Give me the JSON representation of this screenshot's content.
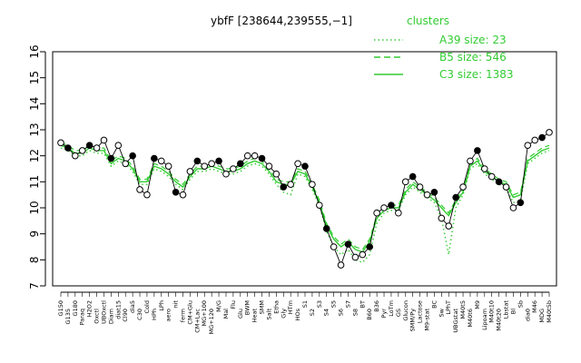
{
  "chart_data": {
    "type": "line",
    "title": "ybfF [238644,239555,−1]",
    "xlabel": "",
    "ylabel": "",
    "ylim": [
      7,
      16
    ],
    "yticks": [
      7,
      8,
      9,
      10,
      11,
      12,
      13,
      14,
      15,
      16
    ],
    "grid": false,
    "legend": {
      "title": "clusters",
      "position": "top-right",
      "entries": [
        {
          "label": "A39 size: 23",
          "style": "dotted"
        },
        {
          "label": "B5 size: 546",
          "style": "dashed"
        },
        {
          "label": "C3 size: 1383",
          "style": "solid"
        }
      ]
    },
    "colors": {
      "points": "#000000",
      "point_fill": "#ffffff",
      "series": "#33cc33",
      "text": "#000000"
    },
    "x_tick_labels": [
      "G150",
      "G135",
      "G180",
      "Paraq",
      "H2O2",
      "Oxctl",
      "UBOxctl",
      "Diam",
      "diat15",
      "Cl90",
      "dia5",
      "C30",
      "Cold",
      "HPh",
      "LPh",
      "aero",
      "nit",
      "ferm",
      "CM+Glu",
      "CM+Lac",
      "MG+100",
      "MG+120",
      "M/G",
      "Mal",
      "Flu",
      "Glu",
      "BWM",
      "Heat",
      "SMM",
      "Salt",
      "Etha",
      "Gly",
      "HTm",
      "HOs",
      "S1",
      "S2",
      "S3",
      "S4",
      "S5",
      "S6",
      "S7",
      "S8",
      "BT",
      "B60",
      "B36",
      "Pyr",
      "LoTm",
      "GS",
      "Glucon",
      "SMM/Py",
      "Lactose",
      "M9-stat",
      "BC",
      "Sw",
      "LPhT",
      "UBGstat",
      "M40t5",
      "M40t6",
      "M9",
      "Lipoam",
      "M40t10",
      "M40t20",
      "Lbstat",
      "Bl",
      "Sb",
      "dia0",
      "M46",
      "MDG",
      "M40t5b"
    ],
    "series": [
      {
        "name": "",
        "role": "points",
        "values": [
          12.5,
          12.3,
          12.0,
          12.2,
          12.4,
          12.3,
          12.6,
          11.9,
          12.4,
          11.7,
          12.0,
          10.7,
          10.5,
          11.9,
          11.8,
          11.6,
          10.6,
          10.5,
          11.4,
          11.8,
          11.6,
          11.7,
          11.8,
          11.3,
          11.5,
          11.7,
          12.0,
          12.0,
          11.9,
          11.6,
          11.3,
          10.8,
          10.9,
          11.7,
          11.6,
          10.9,
          10.1,
          9.2,
          8.5,
          7.8,
          8.6,
          8.1,
          8.2,
          8.5,
          9.8,
          10.0,
          10.1,
          9.8,
          11.0,
          11.2,
          10.8,
          10.5,
          10.6,
          9.6,
          9.3,
          10.4,
          10.8,
          11.8,
          12.2,
          11.5,
          11.2,
          11.0,
          10.8,
          10.0,
          10.2,
          12.4,
          12.6,
          12.7,
          12.9
        ]
      },
      {
        "name": "",
        "role": "solid line",
        "values": [
          12.4,
          12.3,
          12.1,
          12.1,
          12.3,
          12.2,
          12.2,
          11.7,
          11.9,
          11.8,
          11.5,
          11.0,
          11.0,
          11.6,
          11.5,
          11.3,
          11.0,
          10.8,
          11.2,
          11.5,
          11.5,
          11.6,
          11.5,
          11.4,
          11.4,
          11.5,
          11.7,
          11.8,
          11.7,
          11.4,
          11.0,
          10.9,
          10.9,
          11.4,
          11.3,
          10.8,
          10.2,
          9.3,
          8.8,
          8.5,
          8.7,
          8.4,
          8.3,
          8.7,
          9.6,
          9.9,
          10.0,
          10.0,
          10.6,
          10.9,
          10.7,
          10.5,
          10.3,
          10.0,
          9.7,
          10.2,
          10.6,
          11.6,
          11.8,
          11.4,
          11.2,
          11.0,
          10.9,
          10.4,
          10.5,
          11.8,
          12.0,
          12.2,
          12.3
        ]
      },
      {
        "name": "",
        "role": "dashed line",
        "values": [
          12.5,
          12.4,
          12.2,
          12.2,
          12.4,
          12.3,
          12.3,
          11.8,
          12.0,
          11.9,
          11.6,
          11.1,
          11.1,
          11.7,
          11.6,
          11.4,
          11.1,
          10.9,
          11.3,
          11.6,
          11.6,
          11.7,
          11.6,
          11.5,
          11.5,
          11.6,
          11.8,
          11.9,
          11.8,
          11.5,
          11.1,
          11.0,
          11.0,
          11.5,
          11.4,
          10.9,
          10.3,
          9.4,
          8.9,
          8.6,
          8.8,
          8.5,
          8.4,
          8.8,
          9.7,
          10.0,
          10.1,
          10.1,
          10.7,
          11.0,
          10.8,
          10.6,
          10.4,
          10.1,
          9.8,
          10.3,
          10.7,
          11.7,
          11.9,
          11.5,
          11.3,
          11.1,
          11.0,
          10.5,
          10.6,
          11.9,
          12.1,
          12.3,
          12.4
        ]
      },
      {
        "name": "",
        "role": "dotted line",
        "values": [
          12.3,
          12.2,
          12.0,
          12.0,
          12.2,
          12.1,
          12.1,
          11.6,
          11.8,
          11.7,
          11.4,
          10.9,
          10.9,
          11.5,
          11.4,
          11.2,
          10.9,
          10.7,
          11.1,
          11.4,
          11.4,
          11.5,
          11.4,
          11.3,
          11.3,
          11.4,
          11.6,
          11.7,
          11.6,
          11.3,
          10.9,
          10.6,
          10.5,
          11.3,
          11.2,
          10.7,
          10.1,
          9.1,
          8.5,
          8.2,
          8.4,
          8.0,
          7.9,
          8.2,
          9.4,
          9.8,
          9.9,
          9.9,
          10.5,
          10.8,
          10.6,
          10.4,
          10.2,
          9.6,
          8.2,
          10.0,
          10.5,
          11.5,
          11.7,
          11.3,
          11.1,
          10.9,
          10.8,
          10.2,
          10.3,
          11.7,
          11.9,
          12.1,
          12.2
        ]
      }
    ]
  }
}
